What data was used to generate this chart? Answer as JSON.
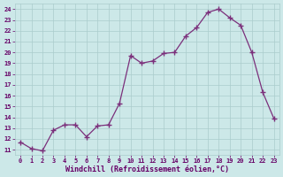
{
  "x": [
    0,
    1,
    2,
    3,
    4,
    5,
    6,
    7,
    8,
    9,
    10,
    11,
    12,
    13,
    14,
    15,
    16,
    17,
    18,
    19,
    20,
    21,
    22,
    23
  ],
  "y": [
    11.7,
    11.1,
    10.9,
    12.8,
    13.3,
    13.3,
    12.2,
    13.2,
    13.3,
    15.3,
    19.7,
    19.0,
    19.2,
    19.9,
    20.0,
    21.5,
    22.3,
    23.7,
    24.0,
    23.2,
    22.5,
    20.0,
    16.3,
    13.9
  ],
  "line_color": "#7b2f7b",
  "marker": "+",
  "marker_size": 4,
  "marker_lw": 1.0,
  "bg_color": "#cce8e8",
  "grid_color": "#aacccc",
  "xlabel": "Windchill (Refroidissement éolien,°C)",
  "xlim": [
    -0.5,
    23.5
  ],
  "ylim": [
    10.5,
    24.5
  ],
  "yticks": [
    11,
    12,
    13,
    14,
    15,
    16,
    17,
    18,
    19,
    20,
    21,
    22,
    23,
    24
  ],
  "xticks": [
    0,
    1,
    2,
    3,
    4,
    5,
    6,
    7,
    8,
    9,
    10,
    11,
    12,
    13,
    14,
    15,
    16,
    17,
    18,
    19,
    20,
    21,
    22,
    23
  ],
  "tick_fontsize": 5.0,
  "xlabel_fontsize": 6.0,
  "label_color": "#660066",
  "linewidth": 0.9
}
